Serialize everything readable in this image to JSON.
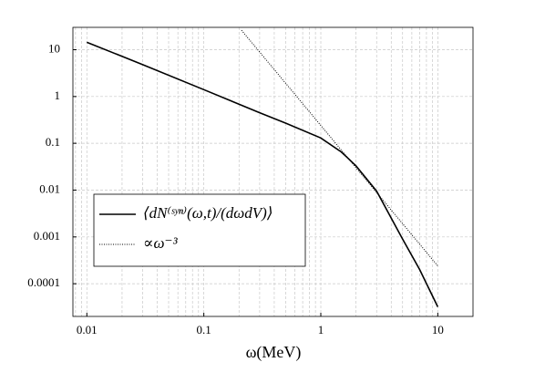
{
  "chart_data": {
    "type": "line",
    "xlabel": "ω(MeV)",
    "xscale": "log",
    "yscale": "log",
    "xlim": [
      0.0076,
      20
    ],
    "ylim": [
      2e-05,
      30
    ],
    "xticks": [
      0.01,
      0.1,
      1,
      10
    ],
    "yticks": [
      0.0001,
      0.001,
      0.01,
      0.1,
      1,
      10
    ],
    "grid": true,
    "minor_grid": true,
    "legend": "lower left",
    "series": [
      {
        "name": "⟨dN⁽ˢʸⁿ⁾(ω,t)/(dωdV)⟩",
        "color": "#000000",
        "style": "solid",
        "x": [
          0.01,
          0.03,
          0.1,
          0.3,
          0.5,
          1,
          1.5,
          2,
          3,
          5,
          7,
          10
        ],
        "values": [
          14.4,
          4.8,
          1.4,
          0.45,
          0.27,
          0.13,
          0.065,
          0.033,
          0.0095,
          0.0009,
          0.0002,
          3.2e-05
        ]
      },
      {
        "name": "∝ω⁻³",
        "color": "#000000",
        "style": "dotted",
        "x": [
          0.21,
          10
        ],
        "values": [
          26,
          0.00024
        ]
      }
    ]
  }
}
